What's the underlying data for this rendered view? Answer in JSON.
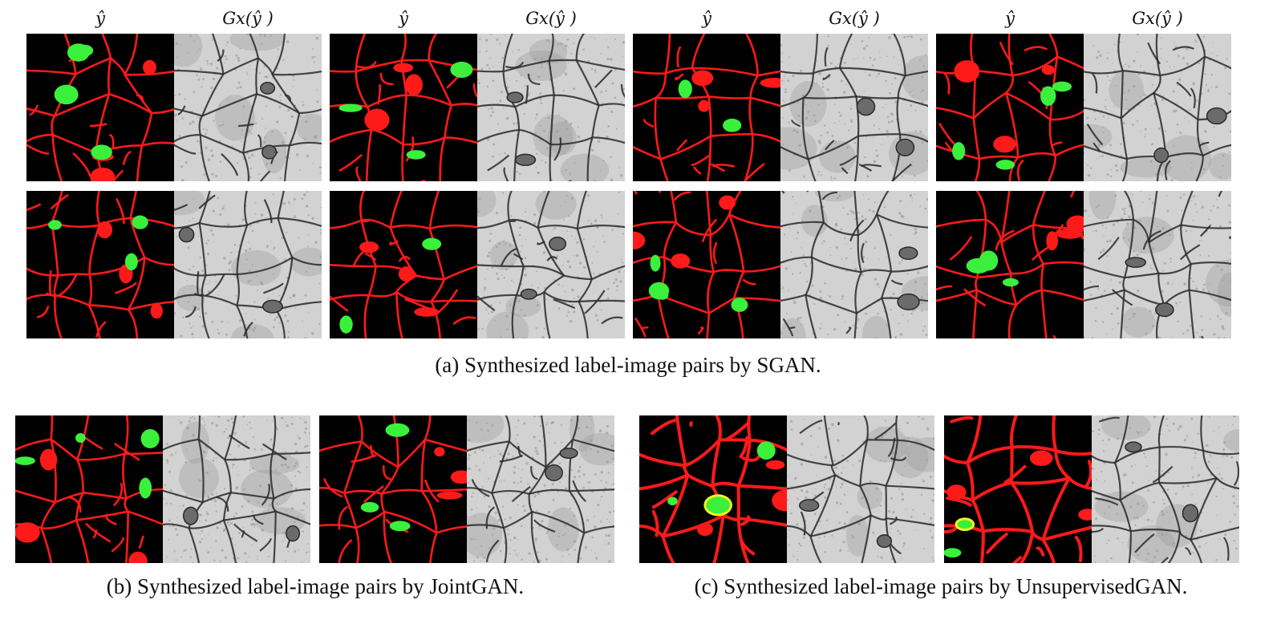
{
  "column_headers": [
    {
      "label": "ŷ"
    },
    {
      "label": "Gx(ŷ )"
    },
    {
      "label": "ŷ"
    },
    {
      "label": "Gx(ŷ )"
    },
    {
      "label": "ŷ"
    },
    {
      "label": "Gx(ŷ )"
    },
    {
      "label": "ŷ"
    },
    {
      "label": "Gx(ŷ )"
    }
  ],
  "captions": {
    "a": "(a) Synthesized label-image pairs by SGAN.",
    "b": "(b) Synthesized label-image pairs by JointGAN.",
    "c": "(c) Synthesized label-image pairs by UnsupervisedGAN."
  },
  "colors": {
    "label_background": "#000000",
    "membrane": "#ff1a1a",
    "mitochondria": "#3bf03b",
    "mitochondria_highlight": "#f5f51a",
    "em_light": "#d2d2d2",
    "em_dark": "#2a2a2a"
  }
}
